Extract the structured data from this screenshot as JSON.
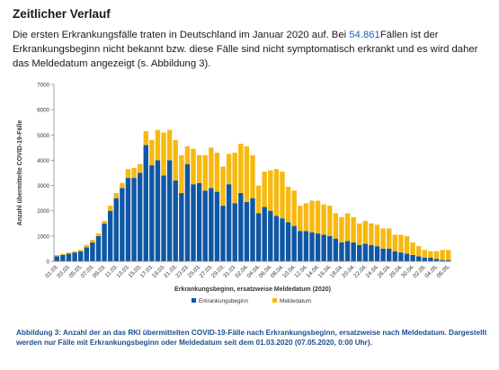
{
  "heading": "Zeitlicher Verlauf",
  "intro": {
    "before": "Die ersten Erkrankungsfälle traten in Deutschland im Januar 2020 auf. Bei ",
    "highlight": "54.861",
    "after": "Fällen ist der Erkrankungsbeginn nicht bekannt bzw. diese Fälle sind nicht symptomatisch erkrankt und es wird daher das Meldedatum angezeigt (s. Abbildung 3)."
  },
  "caption": "Abbildung 3: Anzahl der an das RKI übermittelten COVID-19-Fälle nach Erkrankungsbeginn, ersatzweise nach Meldedatum. Dargestellt werden nur Fälle mit Erkrankungsbeginn oder Meldedatum seit dem 01.03.2020 (07.05.2020, 0:00 Uhr).",
  "chart_data": {
    "type": "bar",
    "stacked": true,
    "xlabel": "Erkrankungsbeginn, ersatzweise Meldedatum (2020)",
    "ylabel": "Anzahl übermittelte COVID-19-Fälle",
    "ylim": [
      0,
      7000
    ],
    "yticks": [
      0,
      1000,
      2000,
      3000,
      4000,
      5000,
      6000,
      7000
    ],
    "xticks": [
      "01.03.",
      "03.03.",
      "05.03.",
      "07.03.",
      "09.03.",
      "11.03.",
      "13.03.",
      "15.03.",
      "17.03.",
      "19.03.",
      "21.03.",
      "23.03.",
      "25.03.",
      "27.03.",
      "29.03.",
      "31.03.",
      "02.04.",
      "04.04.",
      "06.04.",
      "08.04.",
      "10.04.",
      "12.04.",
      "14.04.",
      "16.04.",
      "18.04.",
      "20.04.",
      "22.04.",
      "24.04.",
      "26.04.",
      "28.04.",
      "30.04.",
      "02.05.",
      "04.05.",
      "06.05."
    ],
    "tick_every": 2,
    "legend": "bottom",
    "colors": {
      "onset": "#0f57a5",
      "report": "#f7b90f"
    },
    "series": [
      {
        "name": "Erkrankungsbeginn",
        "values": [
          200,
          250,
          300,
          350,
          400,
          550,
          750,
          1000,
          1500,
          2000,
          2500,
          2900,
          3300,
          3300,
          3500,
          4600,
          3800,
          4000,
          3400,
          4000,
          3200,
          2700,
          3850,
          3050,
          3100,
          2800,
          2900,
          2750,
          2200,
          3050,
          2300,
          2700,
          2350,
          2500,
          1900,
          2150,
          2000,
          1800,
          1700,
          1550,
          1400,
          1200,
          1200,
          1150,
          1100,
          1050,
          1000,
          900,
          750,
          800,
          750,
          650,
          700,
          650,
          600,
          500,
          500,
          400,
          350,
          300,
          250,
          200,
          150,
          150,
          100,
          50,
          50
        ]
      },
      {
        "name": "Meldedatum",
        "values": [
          50,
          50,
          50,
          50,
          50,
          100,
          100,
          100,
          100,
          200,
          200,
          200,
          350,
          400,
          350,
          550,
          1000,
          1200,
          1700,
          1200,
          1600,
          1500,
          700,
          1400,
          1100,
          1400,
          1600,
          1550,
          1550,
          1200,
          2000,
          1950,
          2200,
          1700,
          1100,
          1400,
          1600,
          1850,
          1850,
          1400,
          1400,
          1000,
          1100,
          1250,
          1300,
          1200,
          1200,
          1000,
          1000,
          1100,
          1000,
          850,
          900,
          850,
          850,
          800,
          800,
          650,
          700,
          700,
          500,
          400,
          300,
          250,
          300,
          400,
          400
        ]
      }
    ]
  }
}
